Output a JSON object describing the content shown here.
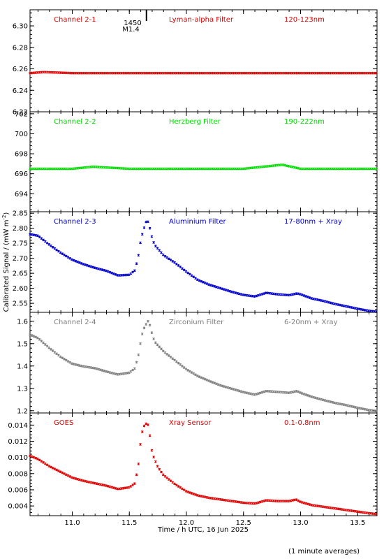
{
  "chart_data": {
    "type": "scatter",
    "xlabel": "Time / h UTC, 16 Jun 2025",
    "ylabel": "Calibrated Signal / (mW m",
    "ylabel_sup": "-2",
    "ylabel_close": ")",
    "footnote": "(1 minute averages)",
    "xlim": [
      10.63,
      13.67
    ],
    "x_ticks": [
      11.0,
      11.5,
      12.0,
      12.5,
      13.0,
      13.5
    ],
    "x_tick_labels": [
      "11.0",
      "11.5",
      "12.0",
      "12.5",
      "13.0",
      "13.5"
    ],
    "event_marker": {
      "x": 11.65,
      "label_time": "1450",
      "label_class": "M1.4"
    },
    "panels": [
      {
        "name": "Channel 2-1",
        "filter": "Lyman-alpha Filter",
        "band": "120-123nm",
        "color": "#e00000",
        "ylim": [
          6.22,
          6.315
        ],
        "y_ticks": [
          6.22,
          6.24,
          6.26,
          6.28,
          6.3
        ],
        "y_tick_labels": [
          "6.22",
          "6.24",
          "6.26",
          "6.28",
          "6.30"
        ],
        "series": [
          {
            "x": 10.63,
            "y": 6.256
          },
          {
            "x": 10.75,
            "y": 6.257
          },
          {
            "x": 11.0,
            "y": 6.256
          },
          {
            "x": 11.5,
            "y": 6.256
          },
          {
            "x": 12.0,
            "y": 6.256
          },
          {
            "x": 12.5,
            "y": 6.256
          },
          {
            "x": 13.0,
            "y": 6.256
          },
          {
            "x": 13.67,
            "y": 6.256
          }
        ]
      },
      {
        "name": "Channel 2-2",
        "filter": "Herzberg Filter",
        "band": "190-222nm",
        "color": "#00dd00",
        "ylim": [
          692.2,
          702.2
        ],
        "y_ticks": [
          694,
          696,
          698,
          700,
          702
        ],
        "y_tick_labels": [
          "694",
          "696",
          "698",
          "700",
          "702"
        ],
        "series": [
          {
            "x": 10.63,
            "y": 696.5
          },
          {
            "x": 11.0,
            "y": 696.5
          },
          {
            "x": 11.18,
            "y": 696.7
          },
          {
            "x": 11.5,
            "y": 696.5
          },
          {
            "x": 12.0,
            "y": 696.5
          },
          {
            "x": 12.5,
            "y": 696.5
          },
          {
            "x": 12.84,
            "y": 696.9
          },
          {
            "x": 13.0,
            "y": 696.5
          },
          {
            "x": 13.67,
            "y": 696.5
          }
        ]
      },
      {
        "name": "Channel 2-3",
        "filter": "Aluminium Filter",
        "band": "17-80nm + Xray",
        "color": "#0000cc",
        "ylim": [
          2.52,
          2.855
        ],
        "y_ticks": [
          2.55,
          2.6,
          2.65,
          2.7,
          2.75,
          2.8,
          2.85
        ],
        "y_tick_labels": [
          "2.55",
          "2.60",
          "2.65",
          "2.70",
          "2.75",
          "2.80",
          "2.85"
        ],
        "series": [
          {
            "x": 10.63,
            "y": 2.78
          },
          {
            "x": 10.7,
            "y": 2.775
          },
          {
            "x": 10.8,
            "y": 2.745
          },
          {
            "x": 10.9,
            "y": 2.718
          },
          {
            "x": 11.0,
            "y": 2.695
          },
          {
            "x": 11.1,
            "y": 2.68
          },
          {
            "x": 11.2,
            "y": 2.668
          },
          {
            "x": 11.3,
            "y": 2.658
          },
          {
            "x": 11.4,
            "y": 2.643
          },
          {
            "x": 11.5,
            "y": 2.645
          },
          {
            "x": 11.55,
            "y": 2.66
          },
          {
            "x": 11.58,
            "y": 2.71
          },
          {
            "x": 11.6,
            "y": 2.76
          },
          {
            "x": 11.62,
            "y": 2.79
          },
          {
            "x": 11.65,
            "y": 2.825
          },
          {
            "x": 11.67,
            "y": 2.82
          },
          {
            "x": 11.69,
            "y": 2.78
          },
          {
            "x": 11.72,
            "y": 2.745
          },
          {
            "x": 11.8,
            "y": 2.71
          },
          {
            "x": 11.9,
            "y": 2.685
          },
          {
            "x": 12.0,
            "y": 2.655
          },
          {
            "x": 12.1,
            "y": 2.628
          },
          {
            "x": 12.2,
            "y": 2.612
          },
          {
            "x": 12.3,
            "y": 2.6
          },
          {
            "x": 12.4,
            "y": 2.588
          },
          {
            "x": 12.5,
            "y": 2.578
          },
          {
            "x": 12.6,
            "y": 2.573
          },
          {
            "x": 12.7,
            "y": 2.585
          },
          {
            "x": 12.8,
            "y": 2.58
          },
          {
            "x": 12.9,
            "y": 2.577
          },
          {
            "x": 12.97,
            "y": 2.583
          },
          {
            "x": 13.0,
            "y": 2.58
          },
          {
            "x": 13.1,
            "y": 2.566
          },
          {
            "x": 13.2,
            "y": 2.558
          },
          {
            "x": 13.3,
            "y": 2.548
          },
          {
            "x": 13.4,
            "y": 2.54
          },
          {
            "x": 13.5,
            "y": 2.532
          },
          {
            "x": 13.6,
            "y": 2.525
          },
          {
            "x": 13.67,
            "y": 2.522
          }
        ]
      },
      {
        "name": "Channel 2-4",
        "filter": "Zirconium Filter",
        "band": "6-20nm + Xray",
        "color": "#808080",
        "ylim": [
          1.19,
          1.64
        ],
        "y_ticks": [
          1.2,
          1.3,
          1.4,
          1.5,
          1.6
        ],
        "y_tick_labels": [
          "1.2",
          "1.3",
          "1.4",
          "1.5",
          "1.6"
        ],
        "series": [
          {
            "x": 10.63,
            "y": 1.54
          },
          {
            "x": 10.7,
            "y": 1.525
          },
          {
            "x": 10.8,
            "y": 1.48
          },
          {
            "x": 10.9,
            "y": 1.44
          },
          {
            "x": 11.0,
            "y": 1.41
          },
          {
            "x": 11.1,
            "y": 1.398
          },
          {
            "x": 11.2,
            "y": 1.39
          },
          {
            "x": 11.3,
            "y": 1.375
          },
          {
            "x": 11.4,
            "y": 1.362
          },
          {
            "x": 11.5,
            "y": 1.37
          },
          {
            "x": 11.55,
            "y": 1.39
          },
          {
            "x": 11.58,
            "y": 1.45
          },
          {
            "x": 11.6,
            "y": 1.51
          },
          {
            "x": 11.62,
            "y": 1.56
          },
          {
            "x": 11.65,
            "y": 1.59
          },
          {
            "x": 11.67,
            "y": 1.605
          },
          {
            "x": 11.69,
            "y": 1.56
          },
          {
            "x": 11.72,
            "y": 1.51
          },
          {
            "x": 11.8,
            "y": 1.465
          },
          {
            "x": 11.9,
            "y": 1.425
          },
          {
            "x": 12.0,
            "y": 1.385
          },
          {
            "x": 12.1,
            "y": 1.355
          },
          {
            "x": 12.2,
            "y": 1.333
          },
          {
            "x": 12.3,
            "y": 1.313
          },
          {
            "x": 12.4,
            "y": 1.298
          },
          {
            "x": 12.5,
            "y": 1.283
          },
          {
            "x": 12.6,
            "y": 1.272
          },
          {
            "x": 12.7,
            "y": 1.288
          },
          {
            "x": 12.8,
            "y": 1.284
          },
          {
            "x": 12.9,
            "y": 1.28
          },
          {
            "x": 12.97,
            "y": 1.288
          },
          {
            "x": 13.0,
            "y": 1.28
          },
          {
            "x": 13.1,
            "y": 1.262
          },
          {
            "x": 13.2,
            "y": 1.248
          },
          {
            "x": 13.3,
            "y": 1.235
          },
          {
            "x": 13.4,
            "y": 1.225
          },
          {
            "x": 13.5,
            "y": 1.213
          },
          {
            "x": 13.6,
            "y": 1.203
          },
          {
            "x": 13.67,
            "y": 1.198
          }
        ]
      },
      {
        "name": "GOES",
        "filter": "Xray Sensor",
        "band": "0.1-0.8nm",
        "color": "#e00000",
        "ylim": [
          0.0028,
          0.0155
        ],
        "y_ticks": [
          0.004,
          0.006,
          0.008,
          0.01,
          0.012,
          0.014
        ],
        "y_tick_labels": [
          "0.004",
          "0.006",
          "0.008",
          "0.010",
          "0.012",
          "0.014"
        ],
        "series": [
          {
            "x": 10.63,
            "y": 0.0102
          },
          {
            "x": 10.7,
            "y": 0.0098
          },
          {
            "x": 10.8,
            "y": 0.0089
          },
          {
            "x": 10.9,
            "y": 0.0082
          },
          {
            "x": 11.0,
            "y": 0.0075
          },
          {
            "x": 11.1,
            "y": 0.0071
          },
          {
            "x": 11.2,
            "y": 0.0068
          },
          {
            "x": 11.3,
            "y": 0.0065
          },
          {
            "x": 11.4,
            "y": 0.0061
          },
          {
            "x": 11.5,
            "y": 0.0063
          },
          {
            "x": 11.55,
            "y": 0.0068
          },
          {
            "x": 11.58,
            "y": 0.0092
          },
          {
            "x": 11.6,
            "y": 0.0121
          },
          {
            "x": 11.62,
            "y": 0.0137
          },
          {
            "x": 11.64,
            "y": 0.0141
          },
          {
            "x": 11.66,
            "y": 0.0143
          },
          {
            "x": 11.68,
            "y": 0.0127
          },
          {
            "x": 11.7,
            "y": 0.0105
          },
          {
            "x": 11.75,
            "y": 0.0088
          },
          {
            "x": 11.8,
            "y": 0.0078
          },
          {
            "x": 11.9,
            "y": 0.0067
          },
          {
            "x": 12.0,
            "y": 0.0058
          },
          {
            "x": 12.1,
            "y": 0.0053
          },
          {
            "x": 12.2,
            "y": 0.005
          },
          {
            "x": 12.3,
            "y": 0.0048
          },
          {
            "x": 12.4,
            "y": 0.0046
          },
          {
            "x": 12.5,
            "y": 0.0044
          },
          {
            "x": 12.6,
            "y": 0.0043
          },
          {
            "x": 12.7,
            "y": 0.0047
          },
          {
            "x": 12.8,
            "y": 0.0046
          },
          {
            "x": 12.9,
            "y": 0.0046
          },
          {
            "x": 12.96,
            "y": 0.0048
          },
          {
            "x": 13.0,
            "y": 0.0045
          },
          {
            "x": 13.1,
            "y": 0.0041
          },
          {
            "x": 13.2,
            "y": 0.0039
          },
          {
            "x": 13.3,
            "y": 0.0037
          },
          {
            "x": 13.4,
            "y": 0.0035
          },
          {
            "x": 13.5,
            "y": 0.0033
          },
          {
            "x": 13.6,
            "y": 0.0031
          },
          {
            "x": 13.67,
            "y": 0.003
          }
        ]
      }
    ]
  }
}
